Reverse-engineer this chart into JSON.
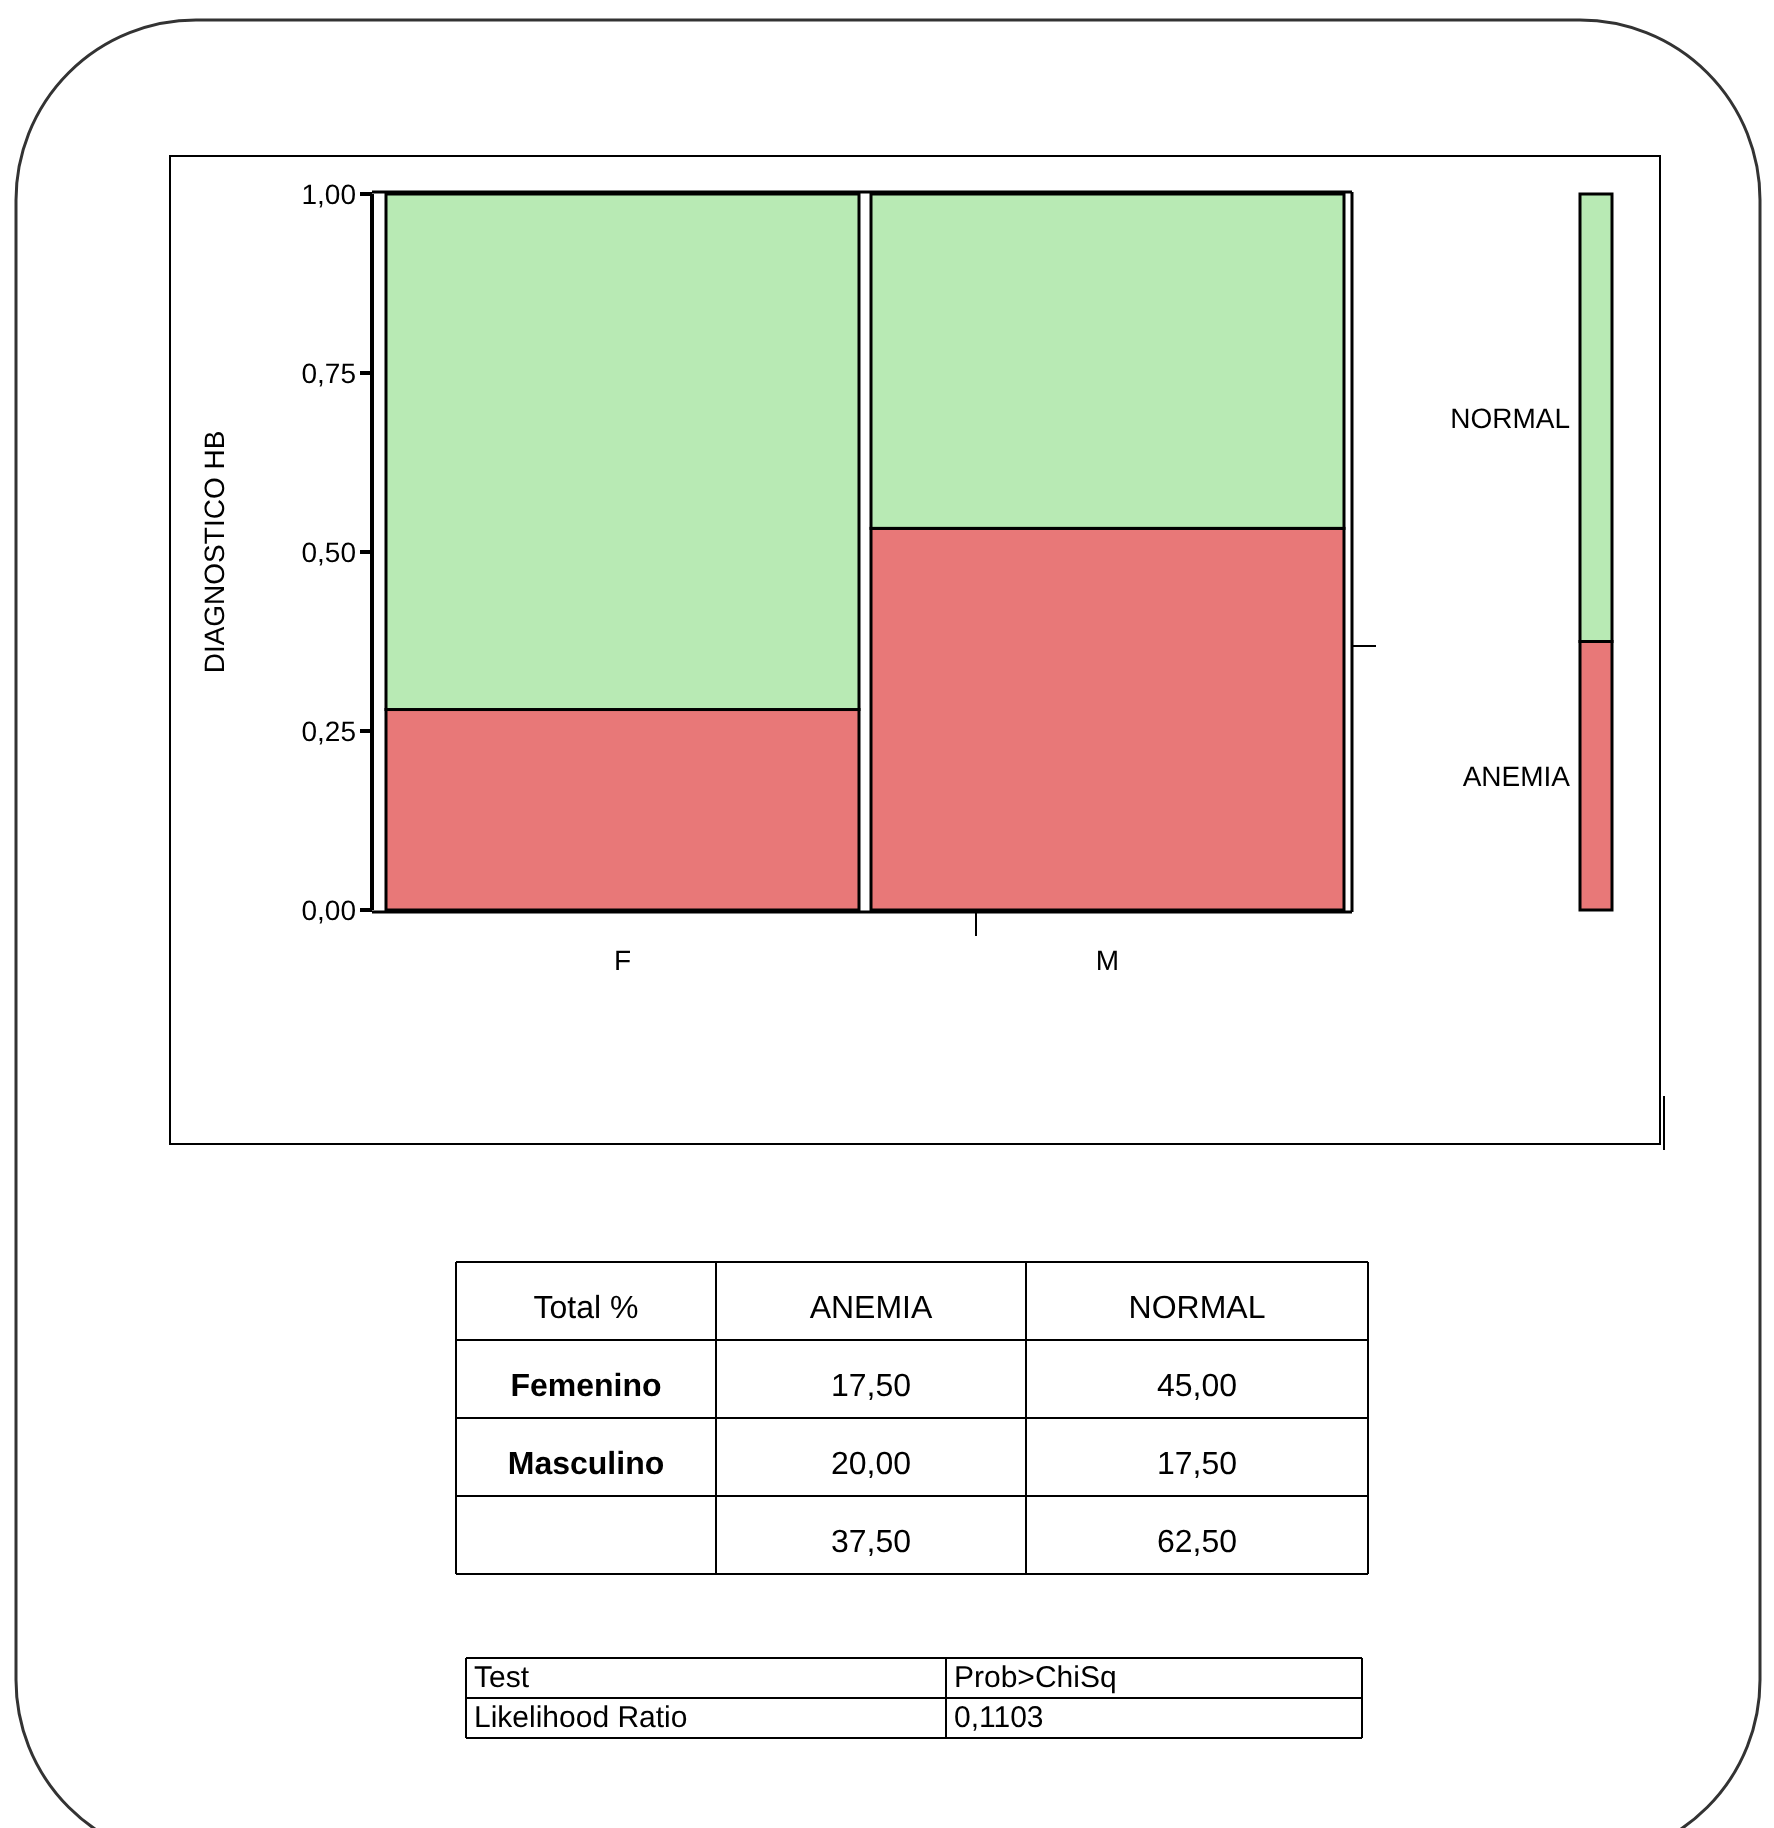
{
  "chart_data": [
    {
      "type": "bar",
      "stacked": true,
      "ylabel": "DIAGNOSTICO HB",
      "categories": [
        "F",
        "M",
        null
      ],
      "ylim": [
        0,
        1
      ],
      "yticks": [
        {
          "value": 0,
          "label": "0,00"
        },
        {
          "value": 0.25,
          "label": "0,25"
        },
        {
          "value": 0.5,
          "label": "0,50"
        },
        {
          "value": 0.75,
          "label": "0,75"
        },
        {
          "value": 1,
          "label": "1,00"
        }
      ],
      "series": [
        {
          "name": "ANEMIA",
          "color": "#e87878",
          "values": [
            0.28,
            0.533,
            0.375
          ]
        },
        {
          "name": "NORMAL",
          "color": "#b8eab4",
          "values": [
            0.72,
            0.467,
            0.625
          ]
        }
      ],
      "grid": false
    },
    {
      "type": "other",
      "categories": [
        "Total %",
        "ANEMIA",
        "NORMAL"
      ],
      "annotations": [
        "Femenino",
        "17,50",
        "45,00",
        "Masculino",
        "20,00",
        "17,50",
        "37,50",
        "62,50"
      ]
    },
    {
      "type": "other",
      "categories": [
        "Test",
        "Prob>ChiSq"
      ],
      "annotations": [
        "Likelihood Ratio",
        "0,1103"
      ]
    }
  ]
}
